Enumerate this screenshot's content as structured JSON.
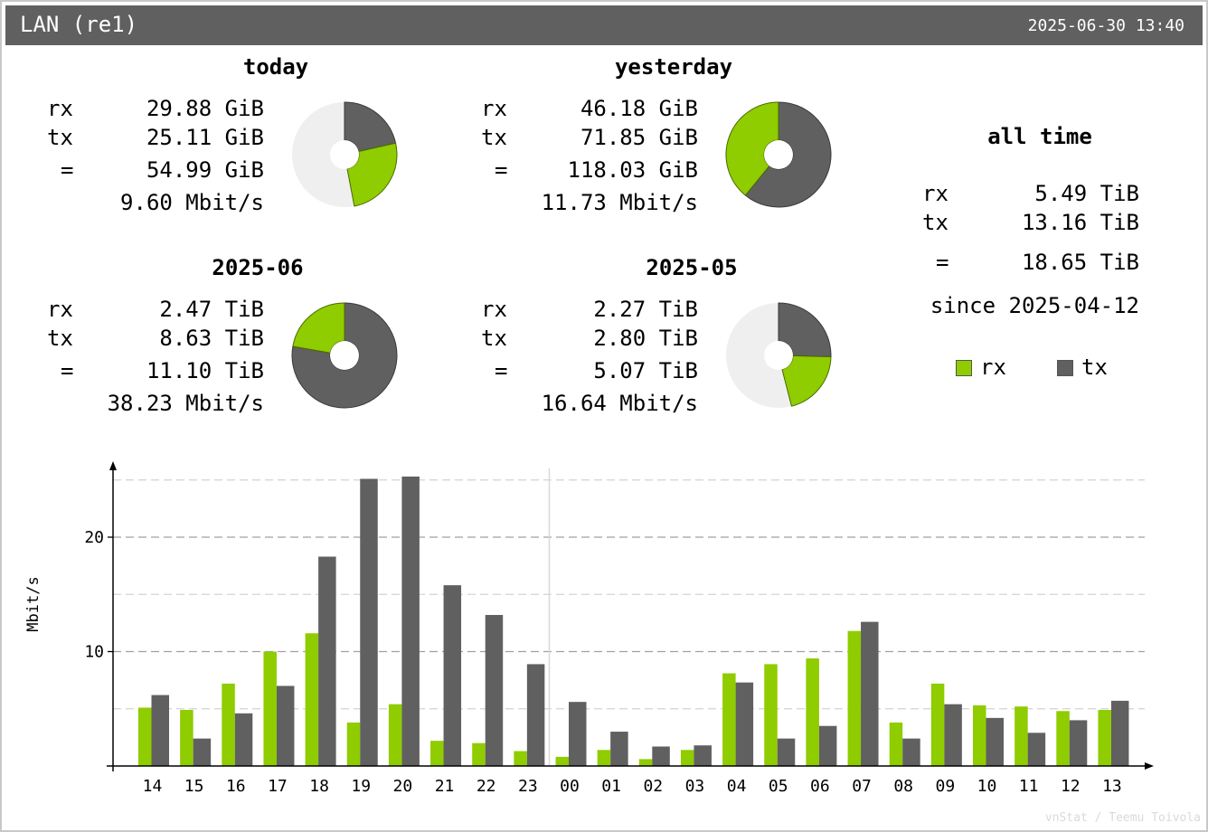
{
  "header": {
    "title": "LAN (re1)",
    "datetime": "2025-06-30 13:40"
  },
  "summaries": {
    "today": {
      "title": "today",
      "rx_label": "rx",
      "rx": "29.88 GiB",
      "tx_label": "tx",
      "tx": "25.11 GiB",
      "total_label": "=",
      "total": "54.99 GiB",
      "rate": "9.60 Mbit/s",
      "rx_value": 29.88,
      "tx_value": 25.11,
      "fill_fraction": 0.47
    },
    "yesterday": {
      "title": "yesterday",
      "rx_label": "rx",
      "rx": "46.18 GiB",
      "tx_label": "tx",
      "tx": "71.85 GiB",
      "total_label": "=",
      "total": "118.03 GiB",
      "rate": "11.73 Mbit/s",
      "rx_value": 46.18,
      "tx_value": 71.85,
      "fill_fraction": 1.0
    },
    "month_current": {
      "title": "2025-06",
      "rx_label": "rx",
      "rx": "2.47 TiB",
      "tx_label": "tx",
      "tx": "8.63 TiB",
      "total_label": "=",
      "total": "11.10 TiB",
      "rate": "38.23 Mbit/s",
      "rx_value": 2.47,
      "tx_value": 8.63,
      "fill_fraction": 1.0
    },
    "month_prev": {
      "title": "2025-05",
      "rx_label": "rx",
      "rx": "2.27 TiB",
      "tx_label": "tx",
      "tx": "2.80 TiB",
      "total_label": "=",
      "total": "5.07 TiB",
      "rate": "16.64 Mbit/s",
      "rx_value": 2.27,
      "tx_value": 2.8,
      "fill_fraction": 0.46
    },
    "all_time": {
      "title": "all time",
      "rx_label": "rx",
      "rx": "5.49 TiB",
      "tx_label": "tx",
      "tx": "13.16 TiB",
      "total_label": "=",
      "total": "18.65 TiB",
      "since": "since 2025-04-12"
    }
  },
  "legend": {
    "rx": "rx",
    "tx": "tx"
  },
  "credit": "vnStat / Teemu Toivola",
  "colors": {
    "rx": "#8fcc00",
    "tx": "#606060",
    "empty": "#efefef"
  },
  "chart_data": {
    "type": "bar",
    "ylabel": "Mbit/s",
    "ylim": [
      0,
      25
    ],
    "yticks": [
      10,
      20
    ],
    "grid": true,
    "categories": [
      "14",
      "15",
      "16",
      "17",
      "18",
      "19",
      "20",
      "21",
      "22",
      "23",
      "00",
      "01",
      "02",
      "03",
      "04",
      "05",
      "06",
      "07",
      "08",
      "09",
      "10",
      "11",
      "12",
      "13"
    ],
    "series": [
      {
        "name": "rx",
        "values": [
          5.1,
          4.9,
          7.2,
          10.0,
          11.6,
          3.8,
          5.4,
          2.2,
          2.0,
          1.3,
          0.8,
          1.4,
          0.6,
          1.4,
          8.1,
          8.9,
          9.4,
          11.8,
          3.8,
          7.2,
          5.3,
          5.2,
          4.8,
          4.9
        ]
      },
      {
        "name": "tx",
        "values": [
          6.2,
          2.4,
          4.6,
          7.0,
          18.3,
          25.1,
          25.3,
          15.8,
          13.2,
          8.9,
          5.6,
          3.0,
          1.7,
          1.8,
          7.3,
          2.4,
          3.5,
          12.6,
          2.4,
          5.4,
          4.2,
          2.9,
          4.0,
          5.7
        ]
      }
    ]
  }
}
